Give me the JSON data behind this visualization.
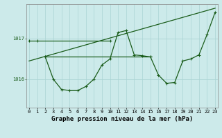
{
  "title": "Graphe pression niveau de la mer (hPa)",
  "bg_color": "#cceaea",
  "grid_major_color": "#aad4d4",
  "grid_minor_color": "#bbdede",
  "line_color": "#1a5c1a",
  "x_ticks": [
    0,
    1,
    2,
    3,
    4,
    5,
    6,
    7,
    8,
    9,
    10,
    11,
    12,
    13,
    14,
    15,
    16,
    17,
    18,
    19,
    20,
    21,
    22,
    23
  ],
  "y_ticks": [
    1016,
    1017
  ],
  "ylim": [
    1015.3,
    1017.85
  ],
  "xlim": [
    -0.3,
    23.3
  ],
  "series_main_x": [
    2,
    3,
    4,
    5,
    6,
    7,
    8,
    9,
    10,
    11,
    12,
    13,
    14,
    15,
    16,
    17,
    18,
    19,
    20,
    21,
    22,
    23
  ],
  "series_main_y": [
    1016.55,
    1016.0,
    1015.75,
    1015.72,
    1015.72,
    1015.82,
    1016.0,
    1016.35,
    1016.5,
    1017.15,
    1017.2,
    1016.6,
    1016.58,
    1016.55,
    1016.1,
    1015.9,
    1015.92,
    1016.45,
    1016.5,
    1016.6,
    1017.1,
    1017.65
  ],
  "flat_line1_x": [
    0,
    1,
    10
  ],
  "flat_line1_y": [
    1016.95,
    1016.95,
    1016.95
  ],
  "flat_line2_x": [
    2,
    15
  ],
  "flat_line2_y": [
    1016.55,
    1016.55
  ],
  "trend_x": [
    0,
    23
  ],
  "trend_y": [
    1016.45,
    1017.75
  ],
  "tick_fontsize": 5,
  "title_fontsize": 6.5
}
